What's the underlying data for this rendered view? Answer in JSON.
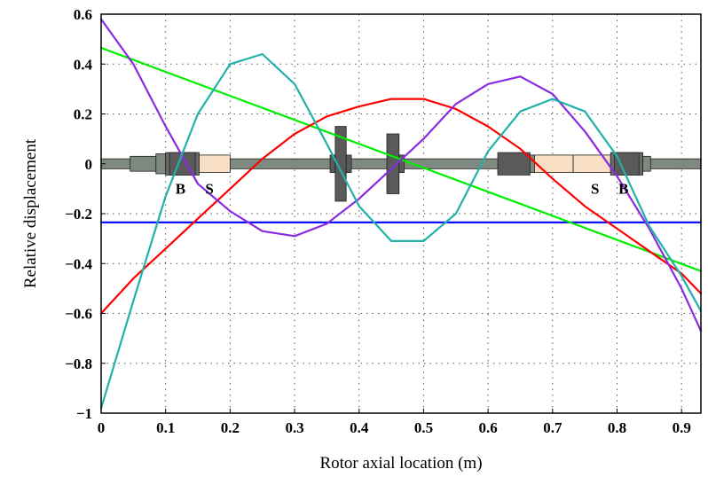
{
  "chart_data": {
    "type": "line",
    "xlabel": "Rotor axial location (m)",
    "ylabel": "Relative displacement",
    "xlim": [
      0,
      0.93
    ],
    "ylim": [
      -1,
      0.6
    ],
    "xticks": [
      0,
      0.1,
      0.2,
      0.3,
      0.4,
      0.5,
      0.6,
      0.7,
      0.8,
      0.9
    ],
    "xtick_labels": [
      "0",
      "0.1",
      "0.2",
      "0.3",
      "0.4",
      "0.5",
      "0.6",
      "0.7",
      "0.8",
      "0.9"
    ],
    "yticks": [
      0.6,
      0.4,
      0.2,
      0,
      -0.2,
      -0.4,
      -0.6,
      -0.8,
      -1
    ],
    "ytick_labels": [
      "0.6",
      "0.4",
      "0.2",
      "0",
      "−0.2",
      "−0.4",
      "−0.6",
      "−0.8",
      "−1"
    ],
    "grid": true,
    "series": [
      {
        "color": "#0000ff",
        "x": [
          0,
          0.93
        ],
        "y": [
          -0.235,
          -0.235
        ]
      },
      {
        "color": "#00ee00",
        "x": [
          0,
          0.93
        ],
        "y": [
          0.465,
          -0.43
        ]
      },
      {
        "color": "#ff0000",
        "x": [
          0,
          0.05,
          0.1,
          0.15,
          0.2,
          0.25,
          0.3,
          0.35,
          0.4,
          0.45,
          0.5,
          0.55,
          0.6,
          0.65,
          0.7,
          0.75,
          0.8,
          0.85,
          0.9,
          0.93
        ],
        "y": [
          -0.6,
          -0.46,
          -0.34,
          -0.22,
          -0.1,
          0.02,
          0.12,
          0.19,
          0.23,
          0.26,
          0.26,
          0.22,
          0.15,
          0.06,
          -0.06,
          -0.17,
          -0.26,
          -0.35,
          -0.44,
          -0.52
        ]
      },
      {
        "color": "#8a2be2",
        "x": [
          0,
          0.05,
          0.1,
          0.15,
          0.2,
          0.25,
          0.3,
          0.35,
          0.4,
          0.45,
          0.5,
          0.55,
          0.6,
          0.65,
          0.7,
          0.75,
          0.8,
          0.85,
          0.9,
          0.93
        ],
        "y": [
          0.58,
          0.4,
          0.15,
          -0.08,
          -0.19,
          -0.27,
          -0.29,
          -0.24,
          -0.14,
          -0.02,
          0.1,
          0.24,
          0.32,
          0.35,
          0.28,
          0.13,
          -0.05,
          -0.26,
          -0.5,
          -0.67
        ]
      },
      {
        "color": "#20b2aa",
        "x": [
          0,
          0.05,
          0.1,
          0.15,
          0.2,
          0.25,
          0.3,
          0.35,
          0.4,
          0.45,
          0.5,
          0.55,
          0.6,
          0.65,
          0.7,
          0.75,
          0.8,
          0.85,
          0.9,
          0.93
        ],
        "y": [
          -0.98,
          -0.55,
          -0.13,
          0.2,
          0.4,
          0.44,
          0.32,
          0.08,
          -0.17,
          -0.31,
          -0.31,
          -0.2,
          0.05,
          0.21,
          0.26,
          0.21,
          0.03,
          -0.25,
          -0.45,
          -0.59
        ]
      }
    ],
    "annotations": [
      {
        "text": "B",
        "x": 0.123,
        "y": -0.12
      },
      {
        "text": "S",
        "x": 0.168,
        "y": -0.12
      },
      {
        "text": "S",
        "x": 0.766,
        "y": -0.12
      },
      {
        "text": "B",
        "x": 0.81,
        "y": -0.12
      }
    ]
  },
  "rotor": {
    "shaft_color": "#7e8a80",
    "bearing_color": "#5a5a5a",
    "seal_color": "#f8dfc3"
  }
}
